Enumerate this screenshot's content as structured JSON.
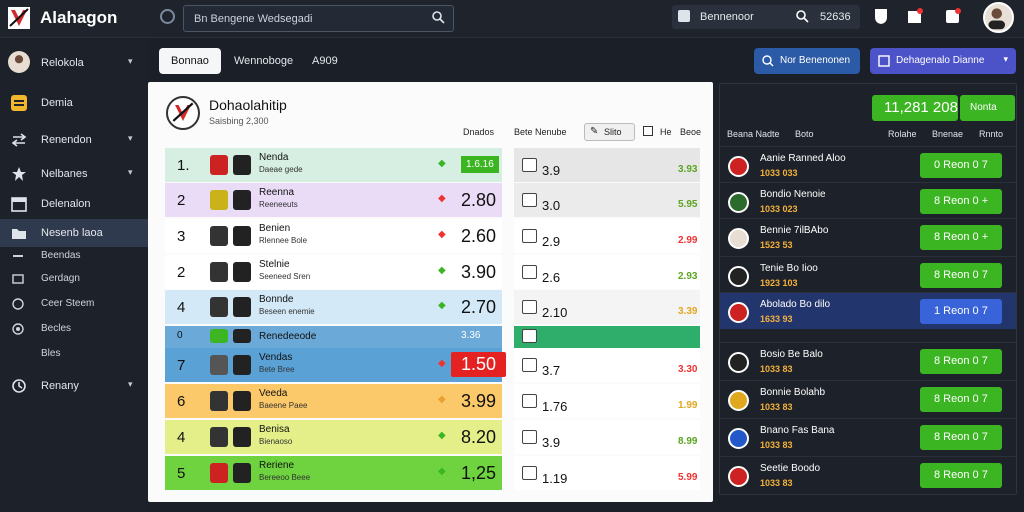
{
  "header": {
    "brand": "Alahagon",
    "search_text": "Bn Bengene Wedsegadi",
    "tb_label": "Bennenoor",
    "tb_number": "52636"
  },
  "sidebar": {
    "items": [
      {
        "label": "Relokola",
        "name": "sidebar-item-relokola"
      },
      {
        "label": "Demia",
        "name": "sidebar-item-demia"
      },
      {
        "label": "Renendon",
        "name": "sidebar-item-renendon"
      },
      {
        "label": "Nelbanes",
        "name": "sidebar-item-nelbanes"
      },
      {
        "label": "Delenalon",
        "name": "sidebar-item-delenalon"
      },
      {
        "label": "Nesenb laoa",
        "name": "sidebar-item-nesenb-laoa"
      }
    ],
    "subitems": [
      "Beendas",
      "Gerdagn",
      "Ceer Steem",
      "Becles",
      "Bles"
    ],
    "last": "Renany"
  },
  "tabs": [
    "Bonnao",
    "Wennoboge",
    "A909"
  ],
  "buttons": {
    "blue": "Nor Benenonen",
    "purple": "Dehagenalo Dianne"
  },
  "panel": {
    "title": "Dohaolahitip",
    "subtitle": "Saisbing 2,300",
    "col1": "Dnados",
    "col2": "Bete Nenube",
    "toggle": "Slito",
    "col4": "He",
    "col5": "Beoe"
  },
  "rows": [
    {
      "rank": "1.",
      "name": "Nenda",
      "sub": "Daeae gede",
      "odd": "1.6.16",
      "mid": "3.9",
      "mv": "3.93"
    },
    {
      "rank": "2",
      "name": "Reenna",
      "sub": "Reeneeuts",
      "odd": "2.80",
      "mid": "3.0",
      "mv": "5.95"
    },
    {
      "rank": "3",
      "name": "Benien",
      "sub": "Rlennee Bole",
      "odd": "2.60",
      "mid": "2.9",
      "mv": "2.99"
    },
    {
      "rank": "2",
      "name": "Stelnie",
      "sub": "Seeneed Sren",
      "odd": "3.90",
      "mid": "2.6",
      "mv": "2.93"
    },
    {
      "rank": "4",
      "name": "Bonnde",
      "sub": "Beseen enemie",
      "odd": "2.70",
      "mid": "2.10",
      "mv": "3.39"
    },
    {
      "rank": "0",
      "name": "Renedeeode",
      "sub": "",
      "odd": "3.36",
      "mid": "",
      "mv": ""
    },
    {
      "rank": "7",
      "name": "Vendas",
      "sub": "Bete Bree",
      "odd": "1.50",
      "mid": "3.7",
      "mv": "3.30"
    },
    {
      "rank": "6",
      "name": "Veeda",
      "sub": "Baeene Paee",
      "odd": "3.99",
      "mid": "1.76",
      "mv": "1.99"
    },
    {
      "rank": "4",
      "name": "Benisa",
      "sub": "Bienaoso",
      "odd": "8.20",
      "mid": "3.9",
      "mv": "8.99"
    },
    {
      "rank": "5",
      "name": "Reriene",
      "sub": "Bereeoo Beee",
      "odd": "1,25",
      "mid": "1.19",
      "mv": "5.99"
    }
  ],
  "right": {
    "score": "11,281 208",
    "score_btn": "Nonta",
    "h1": "Beana Nadte",
    "h2": "Boto",
    "h3": "Rolahe",
    "h4": "Bnenae",
    "h5": "Rnnto",
    "rows": [
      {
        "name": "Aanie Ranned Aloo",
        "sub": "1033 033",
        "btn": "0 Reon 0 7"
      },
      {
        "name": "Bondio Nenoie",
        "sub": "1033 023",
        "btn": "8 Reon 0 +"
      },
      {
        "name": "Bennie 7ilBAbo",
        "sub": "1523 53",
        "btn": "8 Reon 0 +"
      },
      {
        "name": "Tenie Bo Iioo",
        "sub": "1923 103",
        "btn": "8 Reon 0 7"
      },
      {
        "name": "Abolado Bo dilo",
        "sub": "1633 93",
        "btn": "1 Reon 0 7"
      },
      {
        "name": "Bosio Be Balo",
        "sub": "1033 83",
        "btn": "8 Reon 0 7"
      },
      {
        "name": "Bonnie Bolahb",
        "sub": "1033 83",
        "btn": "8 Reon 0 7"
      },
      {
        "name": "Bnano Fas Bana",
        "sub": "1033 83",
        "btn": "8 Reon 0 7"
      },
      {
        "name": "Seetie Boodo",
        "sub": "1033 83",
        "btn": "8 Reon 0 7"
      }
    ]
  },
  "colors": {
    "accent_green": "#3cb523",
    "accent_blue": "#2b5aa6",
    "accent_purple": "#4c52c8"
  }
}
